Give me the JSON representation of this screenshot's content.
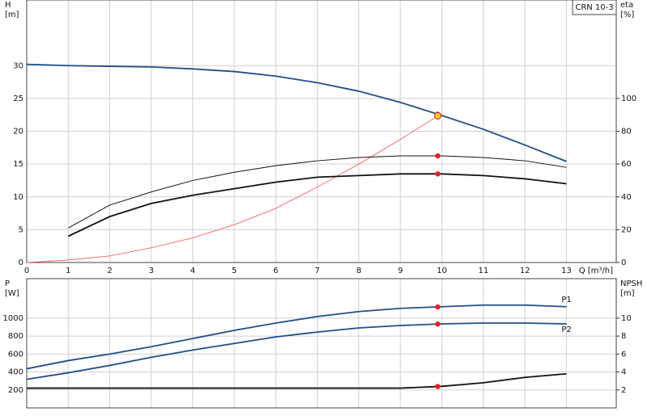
{
  "chart_data": [
    {
      "type": "line",
      "title": "CRN 10-3",
      "ylabel": [
        "H",
        "[m]"
      ],
      "y2label": [
        "eta",
        "[%]"
      ],
      "xlabel": "Q [m³/h]",
      "x": [
        0,
        1,
        2,
        3,
        4,
        5,
        6,
        7,
        8,
        9,
        10,
        11,
        12,
        13
      ],
      "xlim": [
        0,
        14.2
      ],
      "xticks": [
        0,
        1,
        2,
        3,
        4,
        5,
        6,
        7,
        8,
        9,
        10,
        11,
        12,
        13
      ],
      "ylim": [
        0,
        40
      ],
      "yticks": [
        0,
        5,
        10,
        15,
        20,
        25,
        30
      ],
      "y2lim": [
        0,
        160
      ],
      "y2ticks": [
        0,
        20,
        40,
        60,
        80,
        100
      ],
      "grid": true,
      "duty_x": 9.9,
      "series": [
        {
          "color": "#1f4e8c",
          "values": [
            30.2,
            30.0,
            29.9,
            29.8,
            29.5,
            29.1,
            28.4,
            27.4,
            26.1,
            24.4,
            22.4,
            20.3,
            17.9,
            15.4
          ]
        },
        {
          "color": "#ff4a4a",
          "axis": "y2",
          "values": [
            0,
            1.5,
            4,
            9,
            15,
            23,
            33,
            46,
            60,
            75,
            91,
            null,
            null,
            null
          ]
        },
        {
          "color": "#111111",
          "axis": "y2",
          "values": [
            null,
            21,
            35,
            43,
            50,
            55,
            59,
            62,
            64,
            65,
            65,
            64,
            62,
            58
          ]
        },
        {
          "color": "#111111",
          "axis": "y2",
          "values": [
            null,
            16,
            28,
            36,
            41,
            45,
            49,
            52,
            53,
            54,
            54,
            53,
            51,
            48
          ]
        }
      ]
    },
    {
      "type": "line",
      "ylabel": [
        "P",
        "[W]"
      ],
      "y2label": [
        "NPSH",
        "[m]"
      ],
      "x": [
        0,
        1,
        2,
        3,
        4,
        5,
        6,
        7,
        8,
        9,
        10,
        11,
        12,
        13
      ],
      "xlim": [
        0,
        14.2
      ],
      "ylim": [
        0,
        1440
      ],
      "yticks": [
        200,
        400,
        600,
        800,
        1000
      ],
      "y2lim": [
        0,
        14.4
      ],
      "y2ticks": [
        2,
        4,
        6,
        8,
        10
      ],
      "grid": true,
      "duty_x": 9.9,
      "series": [
        {
          "name": "P1",
          "color": "#1f4e8c",
          "values": [
            436,
            527,
            600,
            682,
            773,
            864,
            945,
            1018,
            1073,
            1109,
            1127,
            1145,
            1145,
            1127
          ]
        },
        {
          "name": "P2",
          "color": "#1f4e8c",
          "values": [
            318,
            391,
            473,
            564,
            645,
            718,
            791,
            845,
            891,
            918,
            936,
            945,
            945,
            936
          ]
        },
        {
          "color": "#111111",
          "axis": "y2",
          "values": [
            2.2,
            2.2,
            2.2,
            2.2,
            2.2,
            2.2,
            2.2,
            2.2,
            2.2,
            2.2,
            2.4,
            2.8,
            3.4,
            3.8
          ]
        }
      ]
    }
  ]
}
